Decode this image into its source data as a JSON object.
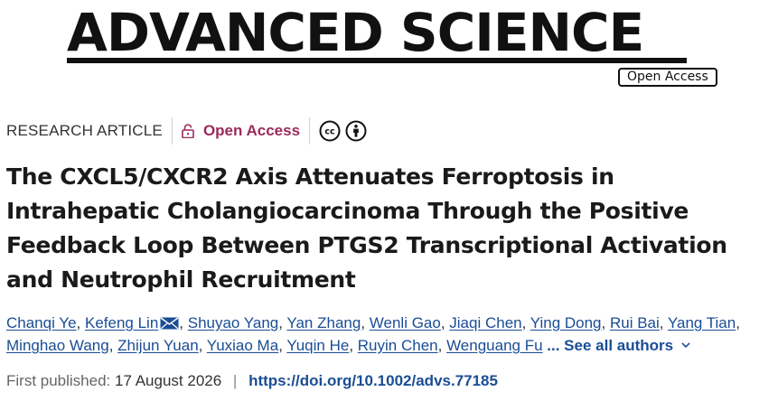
{
  "journal": {
    "name": "ADVANCED SCIENCE",
    "badge": "Open Access"
  },
  "meta": {
    "article_type": "RESEARCH ARTICLE",
    "access_label": "Open Access",
    "license_icons": [
      "cc-icon",
      "by-icon"
    ]
  },
  "article": {
    "title": "The CXCL5/CXCR2 Axis Attenuates Ferroptosis in Intrahepatic Cholangiocarcinoma Through the Positive Feedback Loop Between PTGS2 Transcriptional Activation and Neutrophil Recruitment"
  },
  "authors": {
    "list": [
      "Chanqi Ye",
      "Kefeng Lin",
      "Shuyao Yang",
      "Yan Zhang",
      "Wenli Gao",
      "Jiaqi Chen",
      "Ying Dong",
      "Rui Bai",
      "Yang Tian",
      "Minghao Wang",
      "Zhijun Yuan",
      "Yuxiao Ma",
      "Yuqin He",
      "Ruyin Chen",
      "Wenguang Fu"
    ],
    "see_all": "... See all authors"
  },
  "publication": {
    "label": "First published:",
    "date": "17 August 2026",
    "separator": "|",
    "doi": "https://doi.org/10.1002/advs.77185"
  },
  "colors": {
    "open_access": "#9b2a5c",
    "link": "#1a4d94"
  }
}
